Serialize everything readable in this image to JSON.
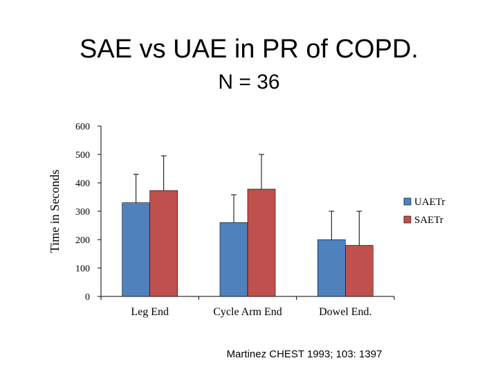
{
  "title_line1": "SAE vs UAE in PR of COPD.",
  "title_line2": "N = 36",
  "citation": "Martinez CHEST 1993; 103: 1397",
  "chart_data": {
    "type": "bar",
    "title": "SAE vs UAE in PR of COPD.",
    "subtitle": "N = 36",
    "ylabel": "Time in Seconds",
    "xlabel": "",
    "ylim": [
      0,
      600
    ],
    "yticks": [
      0,
      100,
      200,
      300,
      400,
      500,
      600
    ],
    "categories": [
      "Leg End",
      "Cycle Arm End",
      "Dowel End."
    ],
    "series": [
      {
        "name": "UAETr",
        "color": "#4f81bd",
        "values": [
          330,
          260,
          200
        ],
        "error_upper": [
          430,
          358,
          300
        ]
      },
      {
        "name": "SAETr",
        "color": "#c0504d",
        "values": [
          373,
          378,
          180
        ],
        "error_upper": [
          495,
          500,
          300
        ]
      }
    ],
    "legend": "right",
    "grid": false
  }
}
